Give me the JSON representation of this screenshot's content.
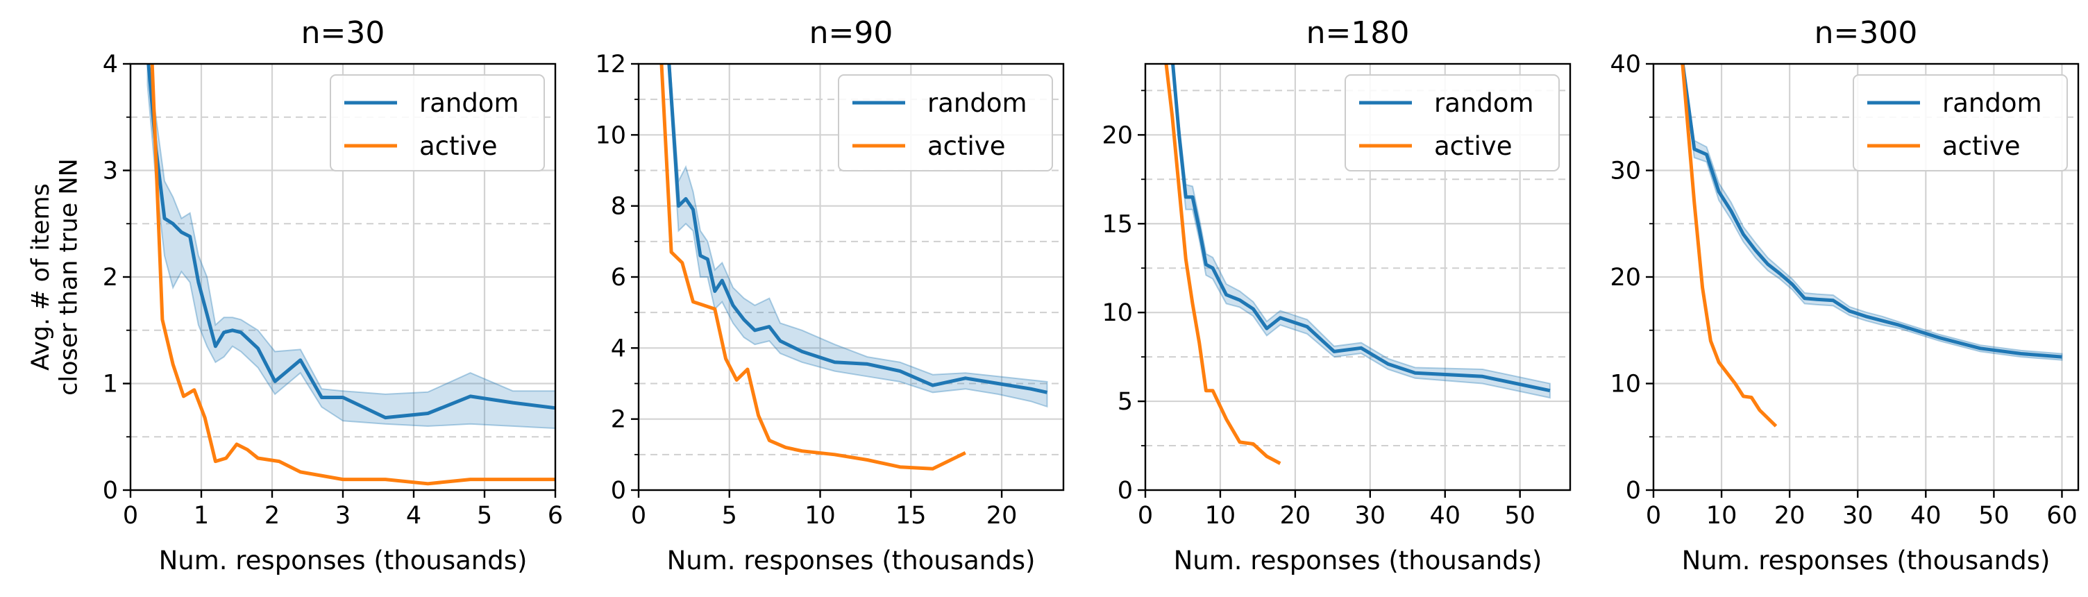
{
  "colors": {
    "random": "#1f77b4",
    "active": "#ff7f0e",
    "band": "#1f77b4",
    "grid": "#d3d3d3"
  },
  "ylabel_lines": [
    "Avg. # of items",
    "closer than true NN"
  ],
  "chart_data": [
    {
      "type": "line",
      "title": "n=30",
      "xlabel": "Num. responses (thousands)",
      "ylabel": "Avg. # of items closer than true NN",
      "xlim": [
        0,
        6
      ],
      "ylim": [
        0,
        4
      ],
      "xticks": [
        0,
        1,
        2,
        3,
        4,
        5,
        6
      ],
      "yticks": [
        0,
        1,
        2,
        3,
        4
      ],
      "yminor": [
        0.5,
        1.5,
        2.5,
        3.5
      ],
      "xtick_labels": [
        "0",
        "1",
        "2",
        "3",
        "4",
        "5",
        "6"
      ],
      "ytick_labels": [
        "0",
        "1",
        "2",
        "3",
        "4"
      ],
      "grid": true,
      "legend": {
        "position": "top-right",
        "entries": [
          "random",
          "active"
        ]
      },
      "series": [
        {
          "name": "random",
          "x": [
            0.24,
            0.36,
            0.48,
            0.6,
            0.72,
            0.84,
            0.96,
            1.08,
            1.2,
            1.32,
            1.44,
            1.56,
            1.8,
            2.04,
            2.4,
            2.7,
            3.0,
            3.6,
            4.2,
            4.8,
            5.4,
            6.0
          ],
          "y": [
            4.1,
            3.2,
            2.55,
            2.5,
            2.42,
            2.38,
            1.95,
            1.65,
            1.35,
            1.48,
            1.5,
            1.48,
            1.33,
            1.02,
            1.22,
            0.87,
            0.87,
            0.68,
            0.72,
            0.88,
            0.82,
            0.77
          ],
          "lower": [
            3.8,
            2.9,
            2.2,
            1.9,
            2.05,
            1.95,
            1.55,
            1.35,
            1.2,
            1.25,
            1.35,
            1.3,
            1.15,
            0.9,
            1.1,
            0.78,
            0.65,
            0.62,
            0.6,
            0.62,
            0.6,
            0.58
          ],
          "upper": [
            4.1,
            3.5,
            2.9,
            2.75,
            2.55,
            2.6,
            2.2,
            2.0,
            1.55,
            1.62,
            1.62,
            1.6,
            1.5,
            1.3,
            1.32,
            0.95,
            0.93,
            0.9,
            0.92,
            1.1,
            0.93,
            0.93
          ]
        },
        {
          "name": "active",
          "x": [
            0.3,
            0.45,
            0.6,
            0.75,
            0.9,
            1.05,
            1.2,
            1.35,
            1.5,
            1.65,
            1.8,
            2.1,
            2.4,
            3.0,
            3.6,
            4.2,
            4.8,
            5.4,
            6.0
          ],
          "y": [
            4.1,
            1.6,
            1.18,
            0.88,
            0.94,
            0.68,
            0.27,
            0.3,
            0.43,
            0.38,
            0.3,
            0.27,
            0.17,
            0.1,
            0.1,
            0.06,
            0.1,
            0.1,
            0.1
          ]
        }
      ]
    },
    {
      "type": "line",
      "title": "n=90",
      "xlabel": "Num. responses (thousands)",
      "ylabel": "",
      "xlim": [
        0,
        23.4
      ],
      "ylim": [
        0,
        12
      ],
      "xticks": [
        0,
        5,
        10,
        15,
        20
      ],
      "yticks": [
        0,
        2,
        4,
        6,
        8,
        10,
        12
      ],
      "yminor": [
        1,
        3,
        5,
        7,
        9,
        11
      ],
      "xtick_labels": [
        "0",
        "5",
        "10",
        "15",
        "20"
      ],
      "ytick_labels": [
        "0",
        "2",
        "4",
        "6",
        "8",
        "10",
        "12"
      ],
      "grid": true,
      "legend": {
        "position": "top-right",
        "entries": [
          "random",
          "active"
        ]
      },
      "series": [
        {
          "name": "random",
          "x": [
            1.6,
            2.2,
            2.6,
            3.0,
            3.4,
            3.8,
            4.2,
            4.6,
            5.2,
            5.8,
            6.4,
            7.2,
            7.8,
            9.0,
            10.8,
            12.6,
            14.4,
            16.2,
            18.0,
            19.8,
            21.6,
            22.5
          ],
          "y": [
            12.6,
            8.0,
            8.2,
            7.9,
            6.6,
            6.5,
            5.6,
            5.9,
            5.2,
            4.8,
            4.5,
            4.6,
            4.2,
            3.9,
            3.6,
            3.55,
            3.35,
            2.95,
            3.15,
            3.0,
            2.85,
            2.75
          ],
          "lower": [
            12.3,
            7.3,
            7.5,
            7.3,
            6.0,
            6.0,
            5.1,
            5.3,
            4.7,
            4.3,
            4.1,
            4.2,
            3.85,
            3.6,
            3.35,
            3.2,
            3.05,
            2.75,
            2.85,
            2.7,
            2.5,
            2.35
          ],
          "upper": [
            12.9,
            8.7,
            9.1,
            8.4,
            7.3,
            7.0,
            6.2,
            6.4,
            5.7,
            5.4,
            5.2,
            5.4,
            4.7,
            4.5,
            4.1,
            3.75,
            3.6,
            3.25,
            3.3,
            3.2,
            3.1,
            3.05
          ]
        },
        {
          "name": "active",
          "x": [
            1.2,
            1.8,
            2.4,
            3.0,
            3.6,
            4.2,
            4.8,
            5.4,
            6.0,
            6.6,
            7.2,
            8.1,
            9.0,
            10.8,
            12.6,
            14.4,
            16.2,
            18.0
          ],
          "y": [
            12.6,
            6.7,
            6.4,
            5.3,
            5.2,
            5.1,
            3.7,
            3.1,
            3.4,
            2.1,
            1.4,
            1.2,
            1.1,
            1.0,
            0.85,
            0.65,
            0.6,
            1.05
          ]
        }
      ]
    },
    {
      "type": "line",
      "title": "n=180",
      "xlabel": "Num. responses (thousands)",
      "ylabel": "",
      "xlim": [
        0,
        56.7
      ],
      "ylim": [
        0,
        24
      ],
      "xticks": [
        0,
        10,
        20,
        30,
        40,
        50
      ],
      "yticks": [
        0,
        5,
        10,
        15,
        20
      ],
      "yminor": [
        2.5,
        7.5,
        12.5,
        17.5,
        22.5
      ],
      "xtick_labels": [
        "0",
        "10",
        "20",
        "30",
        "40",
        "50"
      ],
      "ytick_labels": [
        "0",
        "5",
        "10",
        "15",
        "20"
      ],
      "grid": true,
      "legend": {
        "position": "top-right",
        "entries": [
          "random",
          "active"
        ]
      },
      "series": [
        {
          "name": "random",
          "x": [
            3.6,
            4.5,
            5.4,
            6.3,
            7.2,
            8.1,
            9.0,
            10.8,
            12.6,
            14.4,
            16.2,
            18.0,
            21.6,
            25.2,
            28.8,
            32.4,
            36.0,
            45.0,
            54.0
          ],
          "y": [
            24.3,
            20.0,
            16.5,
            16.5,
            14.7,
            12.7,
            12.5,
            11.0,
            10.7,
            10.2,
            9.1,
            9.7,
            9.2,
            7.8,
            8.0,
            7.1,
            6.6,
            6.4,
            5.6
          ],
          "lower": [
            24.0,
            19.4,
            15.8,
            15.8,
            14.1,
            12.1,
            11.9,
            10.5,
            10.3,
            9.8,
            8.7,
            9.3,
            8.8,
            7.5,
            7.7,
            6.8,
            6.3,
            6.0,
            5.2
          ],
          "upper": [
            24.5,
            20.6,
            17.2,
            17.1,
            15.3,
            13.3,
            13.1,
            11.6,
            11.2,
            10.6,
            9.5,
            10.1,
            9.6,
            8.1,
            8.3,
            7.4,
            6.9,
            6.8,
            6.0
          ]
        },
        {
          "name": "active",
          "x": [
            2.7,
            3.6,
            4.5,
            5.4,
            6.3,
            7.2,
            8.1,
            9.0,
            10.8,
            12.6,
            14.4,
            16.2,
            18.0
          ],
          "y": [
            24.3,
            21.0,
            17.0,
            13.0,
            10.5,
            8.3,
            5.6,
            5.6,
            4.0,
            2.7,
            2.6,
            1.9,
            1.5
          ]
        }
      ]
    },
    {
      "type": "line",
      "title": "n=300",
      "xlabel": "Num. responses (thousands)",
      "ylabel": "",
      "xlim": [
        0,
        62.4
      ],
      "ylim": [
        0,
        40
      ],
      "xticks": [
        0,
        10,
        20,
        30,
        40,
        50,
        60
      ],
      "yticks": [
        0,
        10,
        20,
        30,
        40
      ],
      "yminor": [
        5,
        15,
        25,
        35
      ],
      "xtick_labels": [
        "0",
        "10",
        "20",
        "30",
        "40",
        "50",
        "60"
      ],
      "ytick_labels": [
        "0",
        "10",
        "20",
        "30",
        "40"
      ],
      "grid": true,
      "legend": {
        "position": "top-right",
        "entries": [
          "random",
          "active"
        ]
      },
      "series": [
        {
          "name": "random",
          "x": [
            4.2,
            6.0,
            7.8,
            9.6,
            11.4,
            13.2,
            15.0,
            16.8,
            18.6,
            20.4,
            22.2,
            24.0,
            26.4,
            28.8,
            31.2,
            33.6,
            36.0,
            42.0,
            48.0,
            54.0,
            60.0
          ],
          "y": [
            40.5,
            32.0,
            31.5,
            28.0,
            26.2,
            24.0,
            22.5,
            21.2,
            20.3,
            19.3,
            18.0,
            17.9,
            17.8,
            16.8,
            16.3,
            15.9,
            15.5,
            14.3,
            13.3,
            12.8,
            12.5
          ],
          "lower": [
            40.2,
            31.2,
            30.8,
            27.2,
            25.4,
            23.3,
            21.8,
            20.6,
            19.8,
            18.8,
            17.5,
            17.4,
            17.3,
            16.4,
            15.9,
            15.5,
            15.2,
            14.0,
            13.0,
            12.5,
            12.2
          ],
          "upper": [
            40.8,
            32.8,
            32.2,
            28.8,
            27.0,
            24.7,
            23.2,
            21.8,
            20.8,
            19.8,
            18.5,
            18.4,
            18.3,
            17.2,
            16.7,
            16.3,
            15.8,
            14.6,
            13.6,
            13.1,
            12.8
          ]
        },
        {
          "name": "active",
          "x": [
            4.2,
            6.0,
            7.2,
            8.4,
            9.6,
            10.8,
            12.0,
            13.2,
            14.4,
            15.6,
            18.0
          ],
          "y": [
            40.5,
            27.0,
            19.0,
            14.0,
            12.0,
            11.0,
            10.0,
            8.8,
            8.7,
            7.5,
            6.0
          ]
        }
      ]
    }
  ]
}
